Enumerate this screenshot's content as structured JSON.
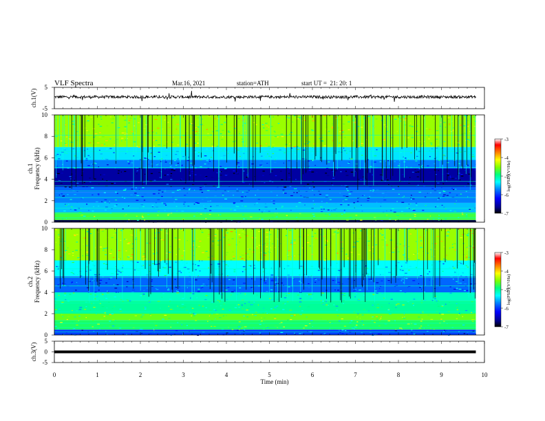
{
  "header": {
    "title": "VLF Spectra",
    "date": "Mar.16, 2021",
    "station": "station=ATH",
    "start": "start UT =  21: 20: 1"
  },
  "colors": {
    "spectrogram_scale": [
      "#000000",
      "#00008b",
      "#0000ff",
      "#0080ff",
      "#00ffff",
      "#00ff80",
      "#80ff00",
      "#ffff00",
      "#ff8000",
      "#ff0000",
      "#ffffff"
    ],
    "trace": "#000000"
  },
  "chart_data": [
    {
      "type": "line",
      "id": "ch1-waveform",
      "ylabel": "ch.1(V)",
      "ylim": [
        -5,
        5
      ],
      "yticks": [
        "5",
        "-5"
      ],
      "xlim": [
        0,
        10
      ],
      "baseline": 0.5,
      "amplitude": 0.6,
      "duration_min": 9.8
    },
    {
      "type": "heatmap",
      "id": "ch1-spectrogram",
      "ylabel": "ch.1\nFrequency (kHz)",
      "ylim": [
        0,
        10
      ],
      "yticks": [
        "0",
        "2",
        "4",
        "6",
        "8",
        "10"
      ],
      "xlim": [
        0,
        10
      ],
      "duration_min": 9.8,
      "colorbar": {
        "label": "log(PSD)(V²/Hz)",
        "ticks": [
          "-3",
          "-4",
          "-5",
          "-6",
          "-7"
        ],
        "range": [
          -7,
          -3
        ]
      },
      "bands_khz": [
        {
          "from": 7.0,
          "to": 10.0,
          "level": 0.62
        },
        {
          "from": 5.8,
          "to": 7.0,
          "level": 0.38
        },
        {
          "from": 5.0,
          "to": 5.8,
          "level": 0.3
        },
        {
          "from": 3.3,
          "to": 5.0,
          "level": 0.12
        },
        {
          "from": 2.8,
          "to": 3.3,
          "level": 0.28
        },
        {
          "from": 1.8,
          "to": 2.8,
          "level": 0.3
        },
        {
          "from": 0.9,
          "to": 1.8,
          "level": 0.35
        },
        {
          "from": 0.2,
          "to": 0.9,
          "level": 0.55
        },
        {
          "from": 0.0,
          "to": 0.2,
          "level": 0.05
        }
      ],
      "lines_khz": [
        0.4,
        0.8,
        1.3,
        2.3,
        2.9,
        3.4,
        3.8,
        5.1,
        6.6,
        8.1
      ]
    },
    {
      "type": "heatmap",
      "id": "ch2-spectrogram",
      "ylabel": "ch.2\nFrequency (kHz)",
      "ylim": [
        0,
        10
      ],
      "yticks": [
        "0",
        "2",
        "4",
        "6",
        "8",
        "10"
      ],
      "xlim": [
        0,
        10
      ],
      "duration_min": 9.8,
      "colorbar": {
        "label": "log(PSD)(V²/Hz)",
        "ticks": [
          "-3",
          "-4",
          "-5",
          "-6",
          "-7"
        ],
        "range": [
          -7,
          -3
        ]
      },
      "bands_khz": [
        {
          "from": 7.0,
          "to": 10.0,
          "level": 0.62
        },
        {
          "from": 5.5,
          "to": 7.0,
          "level": 0.4
        },
        {
          "from": 4.0,
          "to": 5.5,
          "level": 0.28
        },
        {
          "from": 3.2,
          "to": 4.0,
          "level": 0.45
        },
        {
          "from": 2.0,
          "to": 3.2,
          "level": 0.48
        },
        {
          "from": 1.4,
          "to": 2.0,
          "level": 0.58
        },
        {
          "from": 0.5,
          "to": 1.4,
          "level": 0.52
        },
        {
          "from": 0.0,
          "to": 0.5,
          "level": 0.25
        }
      ],
      "lines_khz": [
        0.3,
        0.7,
        1.1,
        2.2,
        3.0,
        3.3,
        4.6,
        5.4,
        6.2
      ]
    },
    {
      "type": "line",
      "id": "ch3-waveform",
      "ylabel": "ch.3(V)",
      "ylim": [
        -5,
        5
      ],
      "yticks": [
        "5",
        "0",
        "-5"
      ],
      "xlim": [
        0,
        10
      ],
      "baseline": 0.0,
      "amplitude": 0.0,
      "duration_min": 9.8
    }
  ],
  "xaxis": {
    "label": "Time (min)",
    "ticks": [
      "0",
      "1",
      "2",
      "3",
      "4",
      "5",
      "6",
      "7",
      "8",
      "9",
      "10"
    ]
  }
}
